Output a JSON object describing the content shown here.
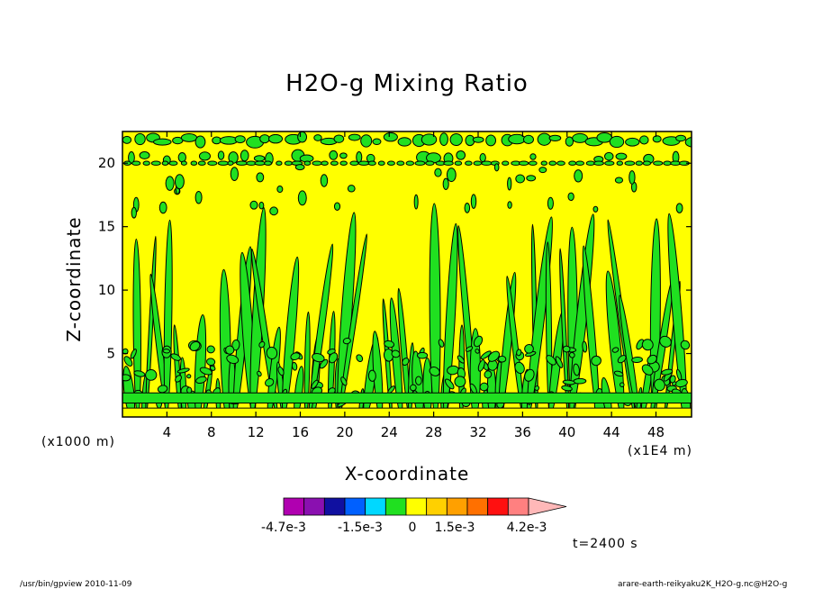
{
  "chart_data": {
    "type": "contour",
    "title": "H2O-g Mixing Ratio",
    "xlabel": "X-coordinate",
    "ylabel": "Z-coordinate",
    "x_unit": "(x1000 m)",
    "x_unit_secondary": "(x1E4 m)",
    "xlim": [
      0,
      51.2
    ],
    "ylim": [
      0,
      22.5
    ],
    "x_ticks": [
      4,
      8,
      12,
      16,
      20,
      24,
      28,
      32,
      36,
      40,
      44,
      48
    ],
    "y_ticks": [
      5,
      10,
      15,
      20
    ],
    "colorbar": {
      "colors": [
        "#b000b0",
        "#8a10b0",
        "#1010a0",
        "#0060ff",
        "#00d8ff",
        "#20e020",
        "#ffff00",
        "#ffd000",
        "#ffa000",
        "#ff7000",
        "#ff1010",
        "#ff8080",
        "#ffb8b8"
      ],
      "tick_labels": [
        "-4.7e-3",
        "-1.5e-3",
        "0",
        "1.5e-3",
        "4.2e-3"
      ]
    },
    "field_colors": {
      "background": "#ffff00",
      "positive": "#20e020"
    },
    "time_label": "t=2400 s"
  },
  "footer": {
    "left": "/usr/bin/gpview   2010-11-09",
    "right": "arare-earth-reikyaku2K_H2O-g.nc@H2O-g"
  }
}
